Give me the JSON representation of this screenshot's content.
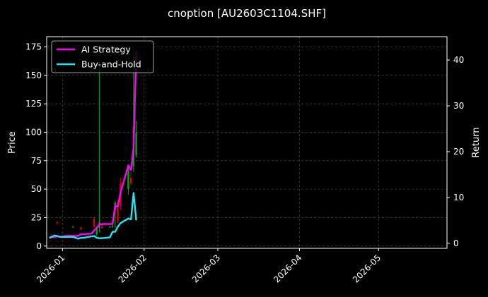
{
  "chart_data": {
    "type": "line",
    "title": "cnoption [AU2603C1104.SHF]",
    "ylabel": "Price",
    "ylabel_right": "Return",
    "x_ticks": [
      "2026-01",
      "2026-02",
      "2026-03",
      "2026-04",
      "2026-05"
    ],
    "x_range": [
      "2025-12-26",
      "2026-05-27"
    ],
    "ylim": [
      -2,
      184
    ],
    "ylim_right": [
      -1.1,
      45.1
    ],
    "y_ticks": [
      0,
      25,
      50,
      75,
      100,
      125,
      150,
      175
    ],
    "y_ticks_right": [
      0,
      10,
      20,
      30,
      40
    ],
    "grid": true,
    "legend_position": "top-left",
    "background": "#000000",
    "candles_up_color": "#00aa00",
    "candles_down_color": "#dd0000",
    "series": [
      {
        "name": "AI Strategy",
        "axis": "right",
        "color": "#ff00ff",
        "points": [
          [
            "2025-12-27",
            1.2
          ],
          [
            "2025-12-29",
            1.4
          ],
          [
            "2025-12-30",
            1.5
          ],
          [
            "2025-12-31",
            1.4
          ],
          [
            "2026-01-02",
            1.6
          ],
          [
            "2026-01-05",
            1.6
          ],
          [
            "2026-01-06",
            1.6
          ],
          [
            "2026-01-07",
            1.6
          ],
          [
            "2026-01-08",
            2.0
          ],
          [
            "2026-01-09",
            2.0
          ],
          [
            "2026-01-12",
            2.1
          ],
          [
            "2026-01-13",
            2.8
          ],
          [
            "2026-01-14",
            3.4
          ],
          [
            "2026-01-15",
            4.1
          ],
          [
            "2026-01-16",
            4.2
          ],
          [
            "2026-01-19",
            4.2
          ],
          [
            "2026-01-20",
            4.2
          ],
          [
            "2026-01-21",
            8.2
          ],
          [
            "2026-01-22",
            8.0
          ],
          [
            "2026-01-23",
            11.0
          ],
          [
            "2026-01-26",
            17.0
          ],
          [
            "2026-01-27",
            16.0
          ],
          [
            "2026-01-28",
            21.0
          ],
          [
            "2026-01-29",
            42.0
          ]
        ]
      },
      {
        "name": "Buy-and-Hold",
        "axis": "right",
        "color": "#22e5f0",
        "points": [
          [
            "2025-12-27",
            1.2
          ],
          [
            "2025-12-29",
            1.7
          ],
          [
            "2025-12-30",
            1.6
          ],
          [
            "2025-12-31",
            1.4
          ],
          [
            "2026-01-02",
            1.4
          ],
          [
            "2026-01-05",
            1.4
          ],
          [
            "2026-01-06",
            1.2
          ],
          [
            "2026-01-07",
            1.0
          ],
          [
            "2026-01-08",
            1.2
          ],
          [
            "2026-01-09",
            1.2
          ],
          [
            "2026-01-12",
            1.5
          ],
          [
            "2026-01-13",
            1.6
          ],
          [
            "2026-01-14",
            1.2
          ],
          [
            "2026-01-15",
            1.1
          ],
          [
            "2026-01-16",
            1.1
          ],
          [
            "2026-01-19",
            1.3
          ],
          [
            "2026-01-20",
            2.5
          ],
          [
            "2026-01-21",
            2.5
          ],
          [
            "2026-01-22",
            3.6
          ],
          [
            "2026-01-23",
            4.4
          ],
          [
            "2026-01-26",
            5.4
          ],
          [
            "2026-01-27",
            5.2
          ],
          [
            "2026-01-28",
            11.0
          ],
          [
            "2026-01-29",
            5.0
          ]
        ]
      }
    ],
    "candles": [
      [
        "2025-12-30",
        21,
        20,
        22,
        19
      ],
      [
        "2026-01-05",
        17,
        17,
        18,
        16
      ],
      [
        "2026-01-08",
        16,
        15,
        17,
        14
      ],
      [
        "2026-01-13",
        24,
        17,
        25,
        16
      ],
      [
        "2026-01-14",
        10,
        16,
        17,
        9
      ],
      [
        "2026-01-15",
        16,
        21,
        165,
        12
      ],
      [
        "2026-01-16",
        17,
        16,
        19,
        15
      ],
      [
        "2026-01-19",
        17,
        17,
        18,
        16
      ],
      [
        "2026-01-20",
        17,
        18,
        20,
        16
      ],
      [
        "2026-01-21",
        32,
        38,
        40,
        16
      ],
      [
        "2026-01-22",
        38,
        22,
        40,
        20
      ],
      [
        "2026-01-23",
        55,
        35,
        60,
        31
      ],
      [
        "2026-01-26",
        50,
        68,
        70,
        45
      ],
      [
        "2026-01-27",
        60,
        55,
        65,
        53
      ],
      [
        "2026-01-28",
        70,
        105,
        175,
        65
      ],
      [
        "2026-01-29",
        80,
        100,
        110,
        78
      ]
    ]
  }
}
